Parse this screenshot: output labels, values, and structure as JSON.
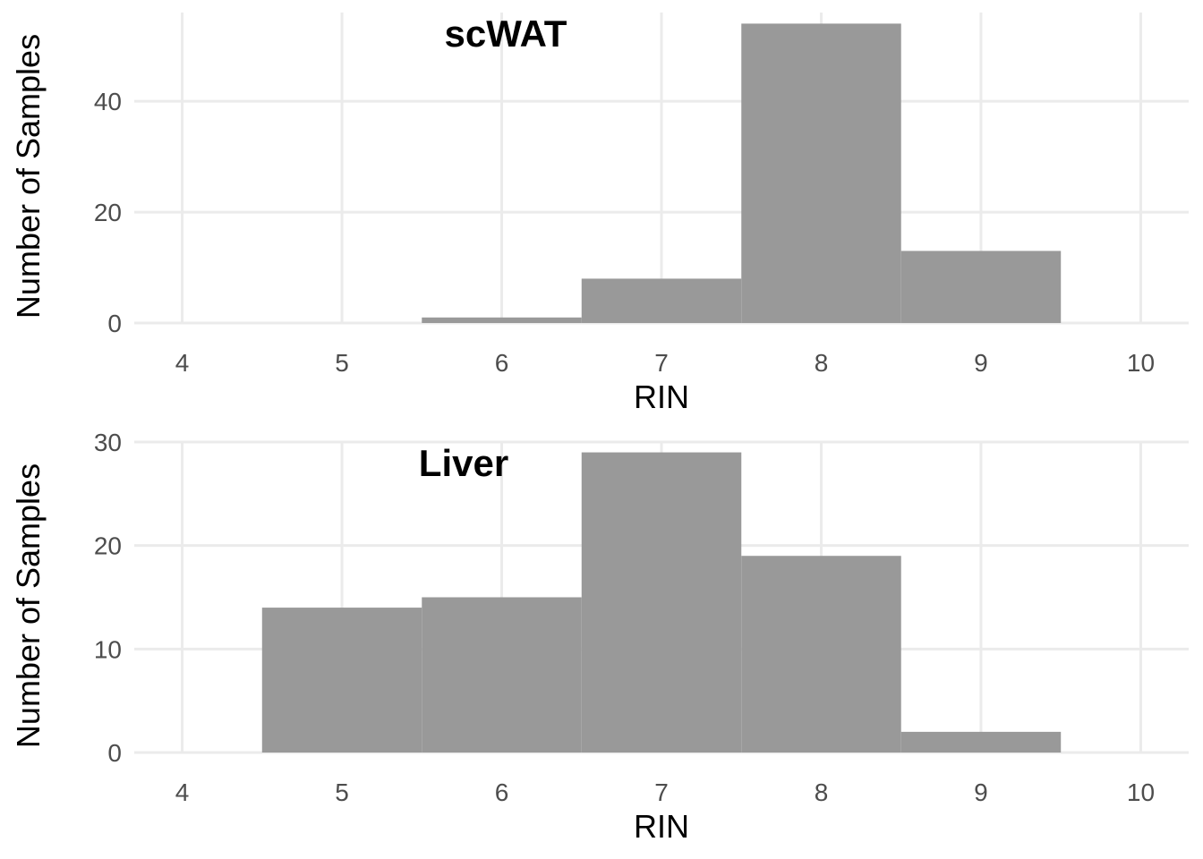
{
  "chart_data": [
    {
      "type": "bar",
      "title": "scWAT",
      "xlabel": "RIN",
      "ylabel": "Number of Samples",
      "xlim": [
        3.7,
        10.3
      ],
      "ylim": [
        0,
        56
      ],
      "x_ticks": [
        4,
        5,
        6,
        7,
        8,
        9,
        10
      ],
      "y_ticks": [
        0,
        20,
        40
      ],
      "bin_width": 1,
      "x": [
        6,
        7,
        8,
        9
      ],
      "values": [
        1,
        8,
        54,
        13
      ],
      "grid": true,
      "bar_color": "#999999"
    },
    {
      "type": "bar",
      "title": "Liver",
      "xlabel": "RIN",
      "ylabel": "Number of Samples",
      "xlim": [
        3.7,
        10.3
      ],
      "ylim": [
        0,
        30
      ],
      "x_ticks": [
        4,
        5,
        6,
        7,
        8,
        9,
        10
      ],
      "y_ticks": [
        0,
        10,
        20,
        30
      ],
      "bin_width": 1,
      "x": [
        5,
        6,
        7,
        8,
        9
      ],
      "values": [
        14,
        15,
        29,
        19,
        2
      ],
      "grid": true,
      "bar_color": "#999999"
    }
  ]
}
